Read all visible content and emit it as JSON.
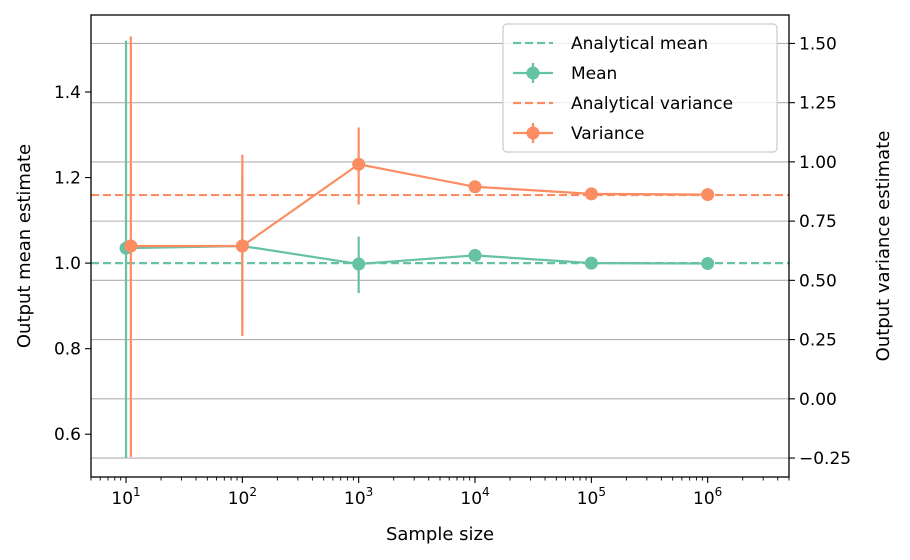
{
  "chart_data": {
    "type": "line",
    "xlabel": "Sample size",
    "ylabel_left": "Output mean estimate",
    "ylabel_right": "Output variance estimate",
    "xscale": "log",
    "xlim": [
      5,
      5000000
    ],
    "ylim_left": [
      0.5,
      1.58
    ],
    "ylim_right": [
      -0.33,
      1.62
    ],
    "grid": "horizontal, right axis",
    "legend_position": "top-right",
    "x_ticks": [
      {
        "base": "10",
        "exp": "1",
        "value": 10
      },
      {
        "base": "10",
        "exp": "2",
        "value": 100
      },
      {
        "base": "10",
        "exp": "3",
        "value": 1000
      },
      {
        "base": "10",
        "exp": "4",
        "value": 10000
      },
      {
        "base": "10",
        "exp": "5",
        "value": 100000
      },
      {
        "base": "10",
        "exp": "6",
        "value": 1000000
      }
    ],
    "y_ticks_left": [
      "0.6",
      "0.8",
      "1.0",
      "1.2",
      "1.4"
    ],
    "y_ticks_right": [
      "−0.25",
      "0.00",
      "0.25",
      "0.50",
      "0.75",
      "1.00",
      "1.25",
      "1.50"
    ],
    "series": [
      {
        "name": "Analytical mean",
        "style": "dashed",
        "axis": "left",
        "color": "#66c2a5",
        "value": 1.0
      },
      {
        "name": "Mean",
        "style": "errorbar",
        "axis": "left",
        "color": "#66c2a5",
        "x": [
          10,
          100,
          1000,
          10000,
          100000,
          1000000
        ],
        "y": [
          1.035,
          1.04,
          0.998,
          1.018,
          1.0,
          0.999
        ],
        "yerr_low": [
          0.545,
          0.865,
          0.93,
          1.015,
          0.995,
          0.995
        ],
        "yerr_high": [
          1.52,
          1.205,
          1.062,
          1.023,
          1.004,
          1.002
        ]
      },
      {
        "name": "Analytical variance",
        "style": "dashed",
        "axis": "right",
        "color": "#fc8d62",
        "value": 0.86
      },
      {
        "name": "Variance",
        "style": "errorbar",
        "axis": "right",
        "color": "#fc8d62",
        "x": [
          11,
          100,
          1000,
          10000,
          100000,
          1000000
        ],
        "y": [
          0.645,
          0.645,
          0.99,
          0.895,
          0.865,
          0.862
        ],
        "yerr_low": [
          -0.245,
          0.265,
          0.82,
          0.87,
          0.855,
          0.855
        ],
        "yerr_high": [
          1.53,
          1.03,
          1.145,
          0.92,
          0.875,
          0.87
        ]
      }
    ]
  }
}
